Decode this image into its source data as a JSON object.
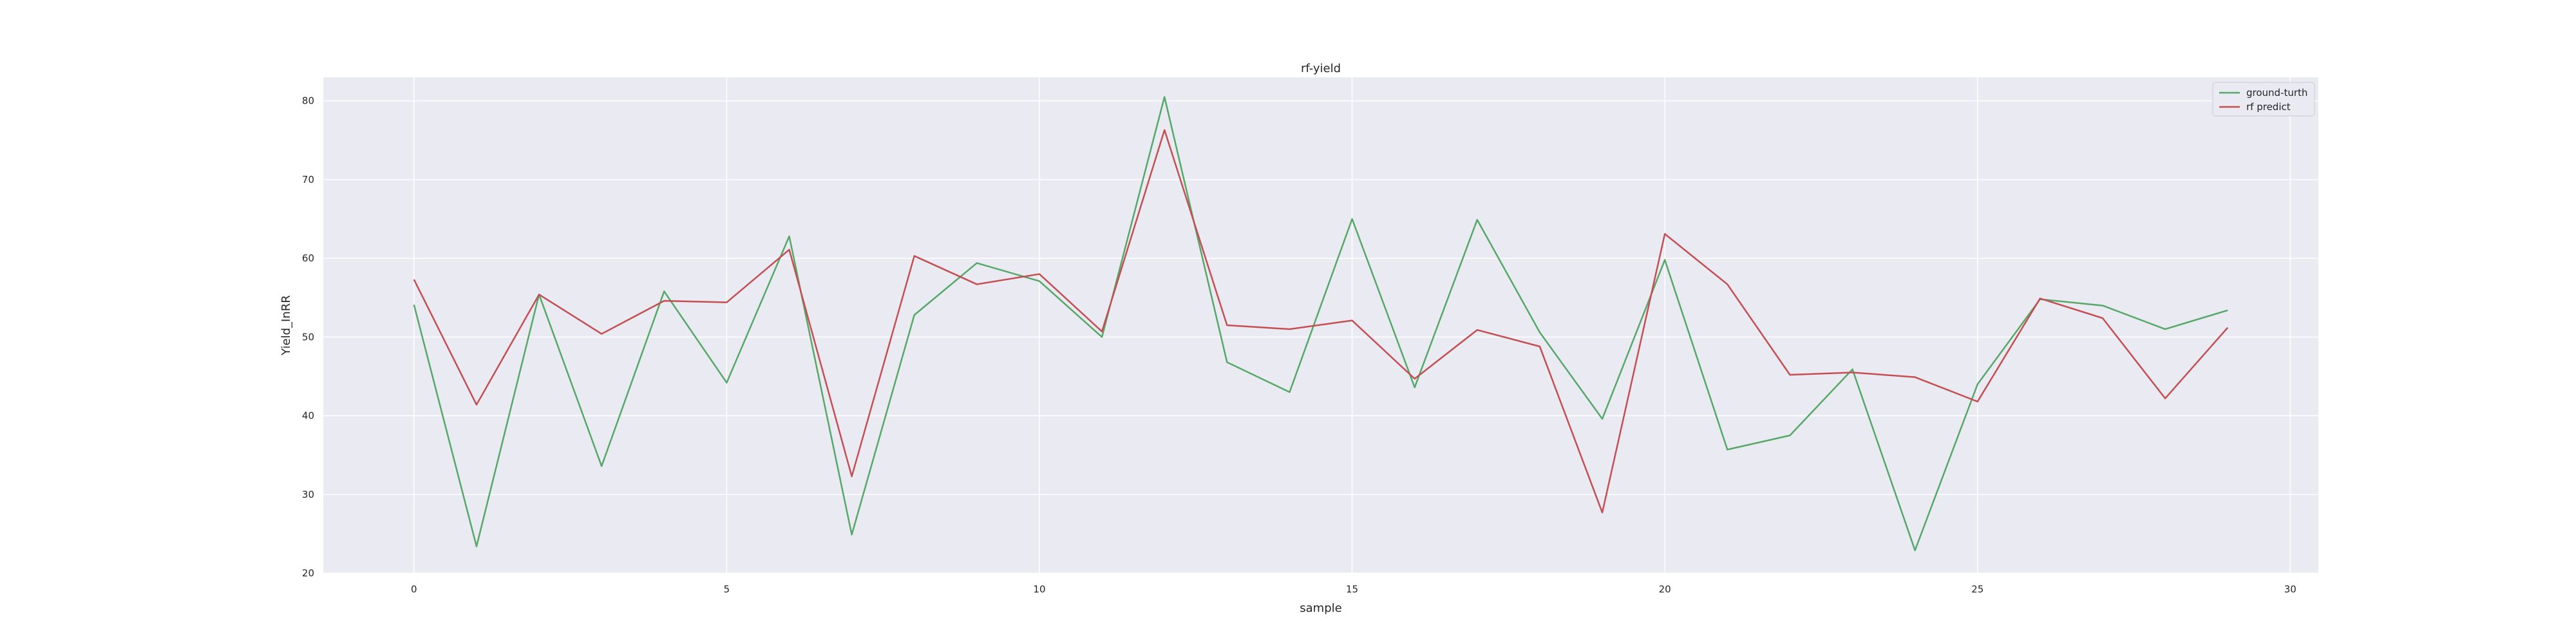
{
  "chart_data": {
    "type": "line",
    "title": "rf-yield",
    "xlabel": "sample",
    "ylabel": "Yield_InRR",
    "xlim": [
      -1.45,
      30.45
    ],
    "ylim": [
      20,
      83
    ],
    "xticks": [
      0,
      5,
      10,
      15,
      20,
      25,
      30
    ],
    "yticks": [
      20,
      30,
      40,
      50,
      60,
      70,
      80
    ],
    "grid": true,
    "legend_position": "top-right",
    "x": [
      0,
      1,
      2,
      3,
      4,
      5,
      6,
      7,
      8,
      9,
      10,
      11,
      12,
      13,
      14,
      15,
      16,
      17,
      18,
      19,
      20,
      21,
      22,
      23,
      24,
      25,
      26,
      27,
      28,
      29
    ],
    "series": [
      {
        "name": "ground-turth",
        "color": "#55a868",
        "values": [
          54.1,
          23.4,
          55.4,
          33.6,
          55.8,
          44.2,
          62.8,
          24.9,
          52.8,
          59.4,
          57.1,
          50.0,
          80.5,
          46.8,
          43.0,
          65.0,
          43.6,
          64.9,
          50.6,
          39.6,
          59.8,
          35.7,
          37.5,
          45.9,
          22.9,
          44.0,
          54.8,
          54.0,
          51.0,
          53.4
        ]
      },
      {
        "name": "rf predict",
        "color": "#c44e52",
        "values": [
          57.3,
          41.4,
          55.4,
          50.4,
          54.6,
          54.4,
          61.1,
          32.3,
          60.3,
          56.7,
          58.0,
          50.7,
          76.3,
          51.5,
          51.0,
          52.1,
          44.7,
          50.9,
          48.8,
          27.7,
          63.1,
          56.7,
          45.2,
          45.5,
          44.9,
          41.8,
          54.9,
          52.4,
          42.2,
          51.2
        ]
      }
    ]
  }
}
